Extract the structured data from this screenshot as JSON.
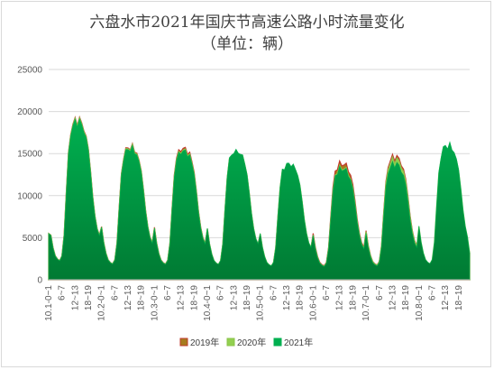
{
  "chart_data": {
    "type": "area",
    "title": "六盘水市2021年国庆节高速公路小时流量变化",
    "subtitle": "（单位：辆）",
    "xlabel": "",
    "ylabel": "",
    "ylim": [
      0,
      25000
    ],
    "yticks": [
      "0",
      "5000",
      "10000",
      "15000",
      "20000",
      "25000"
    ],
    "grid": true,
    "legend_position": "bottom",
    "day_labels": [
      "10.1",
      "10.2",
      "10.3",
      "10.4",
      "10.5",
      "10.6",
      "10.7",
      "10.8"
    ],
    "hour_labels": [
      "0~1",
      "6~7",
      "12~13",
      "18~19"
    ],
    "series": [
      {
        "name": "2019年",
        "color": "#c0392b",
        "fill": "#a67c1e",
        "peaks": [
          19000,
          15800,
          15600,
          15100,
          13500,
          13800,
          14600,
          13000
        ]
      },
      {
        "name": "2020年",
        "color": "#8bc34a",
        "fill": "#92d050",
        "peaks": [
          18900,
          15700,
          15400,
          15200,
          13700,
          13300,
          14300,
          15800
        ]
      },
      {
        "name": "2021年",
        "color": "#00b050",
        "fill": "#00a651",
        "peaks": [
          18800,
          15600,
          15300,
          15300,
          13800,
          13200,
          13800,
          16000
        ]
      }
    ],
    "start_value": 5500,
    "end_value": 3200
  }
}
